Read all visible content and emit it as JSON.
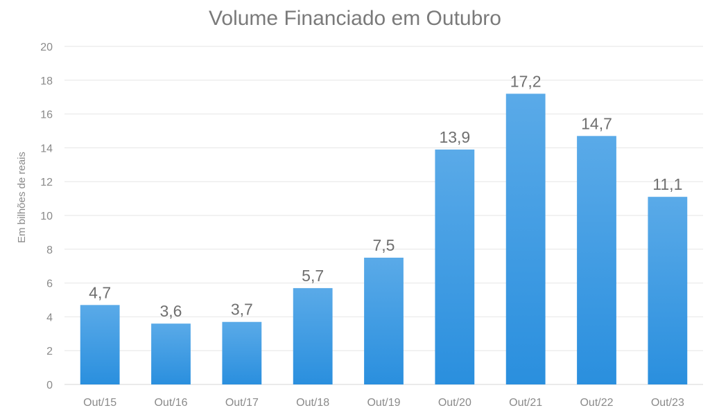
{
  "chart_data": {
    "type": "bar",
    "title": "Volume Financiado em Outubro",
    "xlabel": "",
    "ylabel": "Em bilhões de reais",
    "ylim": [
      0,
      20
    ],
    "yticks": [
      0,
      2,
      4,
      6,
      8,
      10,
      12,
      14,
      16,
      18,
      20
    ],
    "categories": [
      "Out/15",
      "Out/16",
      "Out/17",
      "Out/18",
      "Out/19",
      "Out/20",
      "Out/21",
      "Out/22",
      "Out/23"
    ],
    "values": [
      4.7,
      3.6,
      3.7,
      5.7,
      7.5,
      13.9,
      17.2,
      14.7,
      11.1
    ],
    "value_labels": [
      "4,7",
      "3,6",
      "3,7",
      "5,7",
      "7,5",
      "13,9",
      "17,2",
      "14,7",
      "11,1"
    ],
    "grid": true,
    "legend": "none",
    "colors": {
      "bar_top": "#5aaae8",
      "bar_bottom": "#2a8fde",
      "grid": "#e6e6e6",
      "text": "#7a7a7a"
    }
  }
}
